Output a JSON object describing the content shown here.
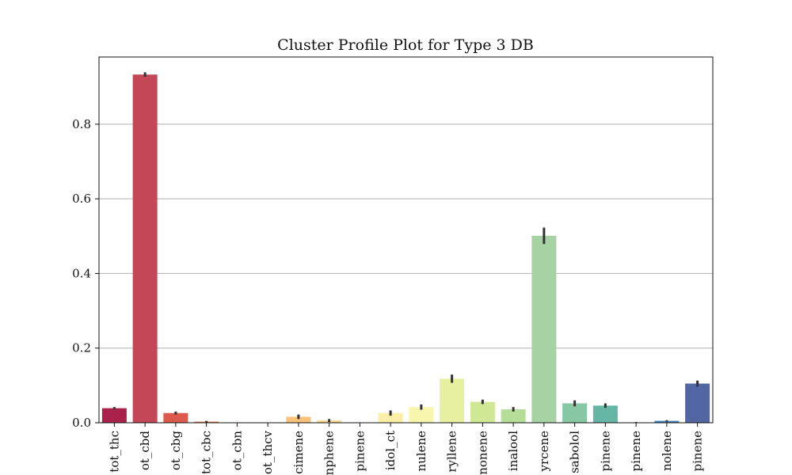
{
  "chart_data": {
    "type": "bar",
    "title": "Cluster Profile Plot for Type 3 DB",
    "xlabel": "",
    "ylabel": "",
    "ylim": [
      0,
      0.98
    ],
    "yticks": [
      0.0,
      0.2,
      0.4,
      0.6,
      0.8
    ],
    "ytick_labels": [
      "0.0",
      "0.2",
      "0.4",
      "0.6",
      "0.8"
    ],
    "grid": "y",
    "categories": [
      "tot_thc",
      "tot_cbd",
      "tot_cbg",
      "tot_cbc",
      "tot_cbn",
      "tot_thcv",
      "ocimene",
      "camphene",
      "a-pinene",
      "eudesmidol_ct",
      "a-humulene",
      "b-caryophyllene",
      "limonene",
      "linalool",
      "b-myrcene",
      "a-bisabolol",
      "b-pinene",
      "a-pinene",
      "terpinolene",
      "b-pinene"
    ],
    "category_labels_visible": [
      "tot_thc",
      "ot_cbd",
      "ot_cbg",
      "tot_cbc",
      "ot_cbn",
      "ot_thcv",
      "cimene",
      "nphene",
      "pinene",
      "idol_ct",
      "nulene",
      "ryllene",
      "nonene",
      "inalool",
      "yrcene",
      "sabolol",
      "pinene",
      "pinene",
      "nolene",
      "pinene"
    ],
    "values": [
      0.039,
      0.933,
      0.026,
      0.003,
      0.0,
      0.0,
      0.016,
      0.006,
      0.0,
      0.026,
      0.042,
      0.118,
      0.056,
      0.036,
      0.501,
      0.052,
      0.046,
      0.001,
      0.005,
      0.105
    ],
    "errors": [
      0.003,
      0.006,
      0.004,
      0.002,
      0.0,
      0.0,
      0.006,
      0.004,
      0.0,
      0.007,
      0.007,
      0.011,
      0.006,
      0.006,
      0.022,
      0.008,
      0.006,
      0.001,
      0.002,
      0.008
    ],
    "colors": [
      "#a8224b",
      "#c44758",
      "#dc5a4d",
      "#e97c4e",
      "#f29a59",
      "#f6b56a",
      "#f8c27a",
      "#fad38b",
      "#fce59c",
      "#fbeea7",
      "#f8f5ae",
      "#e6f0a0",
      "#d0e896",
      "#b7de99",
      "#a6d2a4",
      "#87c7a4",
      "#65b6a4",
      "#4a99b2",
      "#3e7fb6",
      "#5266a4"
    ]
  }
}
